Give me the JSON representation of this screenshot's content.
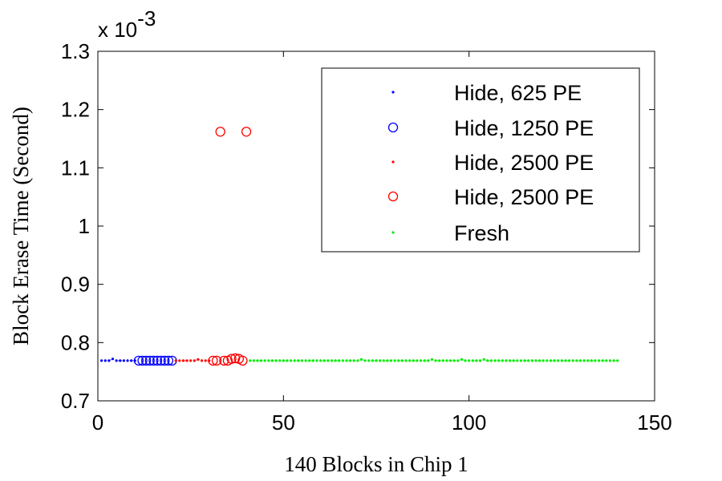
{
  "chart_data": {
    "type": "scatter",
    "xlabel": "140 Blocks in Chip 1",
    "ylabel": "Block Erase Time (Second)",
    "y_multiplier_base": "x 10",
    "y_multiplier_exp": "-3",
    "xlim": [
      0,
      150
    ],
    "ylim": [
      0.7,
      1.3
    ],
    "x_ticks": [
      0,
      50,
      100,
      150
    ],
    "x_tick_labels": [
      "0",
      "50",
      "100",
      "150"
    ],
    "y_ticks": [
      0.7,
      0.8,
      0.9,
      1.0,
      1.1,
      1.2,
      1.3
    ],
    "y_tick_labels": [
      "0.7",
      "0.8",
      "0.9",
      "1",
      "1.1",
      "1.2",
      "1.3"
    ],
    "grid": false,
    "legend_position": "top-right",
    "series": [
      {
        "name": "Hide, 625 PE",
        "color": "#0000ff",
        "marker": "dot",
        "x": [
          1,
          2,
          3,
          4,
          5,
          6,
          7,
          8,
          9,
          10
        ],
        "y": [
          0.769,
          0.769,
          0.769,
          0.772,
          0.769,
          0.769,
          0.769,
          0.769,
          0.769,
          0.769
        ]
      },
      {
        "name": "Hide, 1250 PE",
        "color": "#0000ff",
        "marker": "circle",
        "x": [
          11,
          12,
          13,
          14,
          15,
          16,
          17,
          18,
          19,
          20
        ],
        "y": [
          0.769,
          0.769,
          0.769,
          0.769,
          0.769,
          0.769,
          0.769,
          0.769,
          0.769,
          0.769
        ]
      },
      {
        "name": "Hide, 2500 PE",
        "color": "#ff0000",
        "marker": "dot",
        "x": [
          21,
          22,
          23,
          24,
          25,
          26,
          27,
          28,
          29,
          30
        ],
        "y": [
          0.769,
          0.769,
          0.769,
          0.769,
          0.769,
          0.769,
          0.771,
          0.769,
          0.769,
          0.769
        ]
      },
      {
        "name": "Hide, 2500 PE",
        "color": "#ff0000",
        "marker": "circle",
        "x": [
          31,
          32,
          33,
          34,
          35,
          36,
          37,
          38,
          39,
          40
        ],
        "y": [
          0.769,
          0.769,
          1.162,
          0.769,
          0.769,
          0.772,
          0.773,
          0.772,
          0.769,
          1.162
        ]
      },
      {
        "name": "Fresh",
        "color": "#00ee00",
        "marker": "dot",
        "x_start": 41,
        "x_end": 140,
        "y_base": 0.769,
        "y_overrides": {
          "71": 0.771,
          "90": 0.771,
          "98": 0.771,
          "104": 0.771
        }
      }
    ]
  }
}
